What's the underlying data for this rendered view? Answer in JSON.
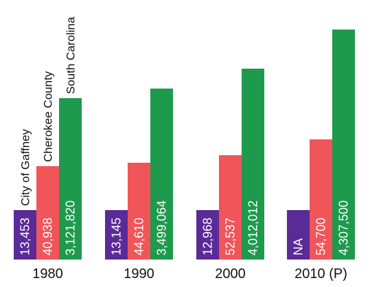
{
  "chart_data": {
    "type": "bar",
    "categories": [
      "1980",
      "1990",
      "2000",
      "2010 (P)"
    ],
    "series": [
      {
        "name": "City of Gaffney",
        "color": "#5a2a96",
        "values": [
          13453,
          13145,
          12968,
          null
        ],
        "labels": [
          "13,453",
          "13,145",
          "12,968",
          "NA"
        ]
      },
      {
        "name": "Cherokee County",
        "color": "#f0555a",
        "values": [
          40938,
          44610,
          52537,
          54700
        ],
        "labels": [
          "40,938",
          "44,610",
          "52,537",
          "54,700"
        ]
      },
      {
        "name": "South Carolina",
        "color": "#1e9a4c",
        "values": [
          3121820,
          3499064,
          4012012,
          4307500
        ],
        "labels": [
          "3,121,820",
          "3,499,064",
          "4,012,012",
          "4,307,500"
        ]
      }
    ],
    "legend": "rotated labels above the 1980 bars",
    "grid": false
  }
}
